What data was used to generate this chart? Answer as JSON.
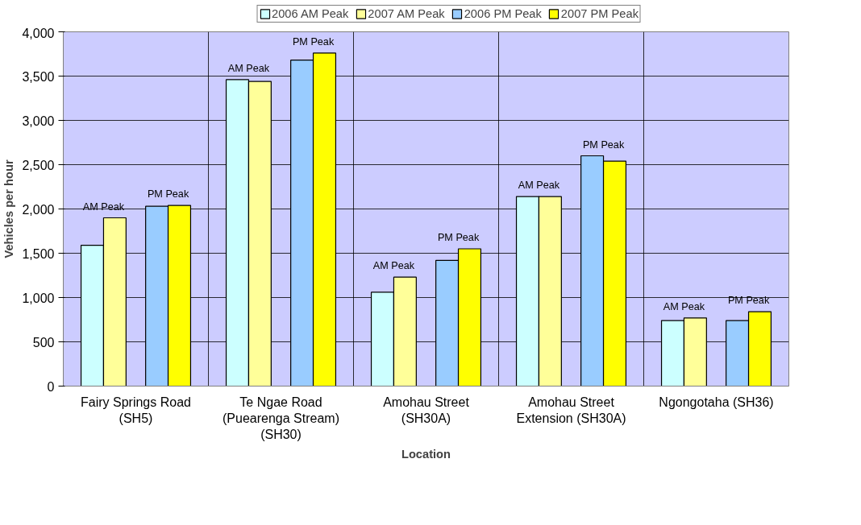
{
  "chart_data": {
    "type": "bar",
    "xlabel": "Location",
    "ylabel": "Vehicles per hour",
    "categories": [
      "Fairy Springs Road (SH5)",
      "Te Ngae Road (Puearenga Stream) (SH30)",
      "Amohau Street (SH30A)",
      "Amohau Street Extension (SH30A)",
      "Ngongotaha (SH36)"
    ],
    "series": [
      {
        "name": "2006 AM Peak",
        "color": "#ccffff",
        "values": [
          1590,
          3460,
          1060,
          2140,
          740
        ]
      },
      {
        "name": "2007 AM Peak",
        "color": "#ffff99",
        "values": [
          1900,
          3440,
          1230,
          2140,
          770
        ]
      },
      {
        "name": "2006 PM Peak",
        "color": "#99ccff",
        "values": [
          2030,
          3680,
          1420,
          2600,
          740
        ]
      },
      {
        "name": "2007 PM Peak",
        "color": "#ffff00",
        "values": [
          2040,
          3760,
          1550,
          2540,
          840
        ]
      }
    ],
    "ylim": [
      0,
      4000
    ],
    "yticks": [
      {
        "value": 0,
        "label": "0"
      },
      {
        "value": 500,
        "label": "500"
      },
      {
        "value": 1000,
        "label": "1,000"
      },
      {
        "value": 1500,
        "label": "1,500"
      },
      {
        "value": 2000,
        "label": "2,000"
      },
      {
        "value": 2500,
        "label": "2,500"
      },
      {
        "value": 3000,
        "label": "3,000"
      },
      {
        "value": 3500,
        "label": "3,500"
      },
      {
        "value": 4000,
        "label": "4,000"
      }
    ],
    "annotations": [
      "AM Peak",
      "PM Peak",
      "AM Peak",
      "PM Peak",
      "AM Peak",
      "PM Peak",
      "AM Peak",
      "PM Peak",
      "AM Peak",
      "PM Peak"
    ],
    "grid": true,
    "legend": "top"
  }
}
